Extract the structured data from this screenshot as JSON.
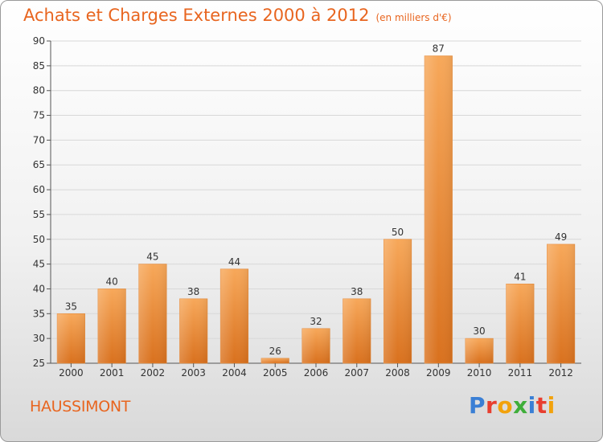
{
  "title": "Achats et Charges Externes 2000 à 2012",
  "unit": "(en milliers d'€)",
  "town": "HAUSSIMONT",
  "logo": {
    "letters": [
      "P",
      "r",
      "o",
      "x",
      "i",
      "t",
      "i"
    ],
    "colors": [
      "#3a7fd5",
      "#e83e2f",
      "#f2a20c",
      "#3fae3a",
      "#3a7fd5",
      "#e83e2f",
      "#f2a20c"
    ]
  },
  "colors": {
    "accent": "#e8651f",
    "bar_top": "#f7a85a",
    "bar_bottom": "#d9711e",
    "grid": "#d8d8d8"
  },
  "chart_data": {
    "type": "bar",
    "title": "Achats et Charges Externes 2000 à 2012",
    "subtitle": "(en milliers d'€)",
    "xlabel": "",
    "ylabel": "",
    "categories": [
      "2000",
      "2001",
      "2002",
      "2003",
      "2004",
      "2005",
      "2006",
      "2007",
      "2008",
      "2009",
      "2010",
      "2011",
      "2012"
    ],
    "values": [
      35,
      40,
      45,
      38,
      44,
      26,
      32,
      38,
      50,
      87,
      30,
      41,
      49
    ],
    "ylim": [
      25,
      90
    ],
    "yticks": [
      25,
      30,
      35,
      40,
      45,
      50,
      55,
      60,
      65,
      70,
      75,
      80,
      85,
      90
    ],
    "grid": true,
    "data_labels": true
  }
}
